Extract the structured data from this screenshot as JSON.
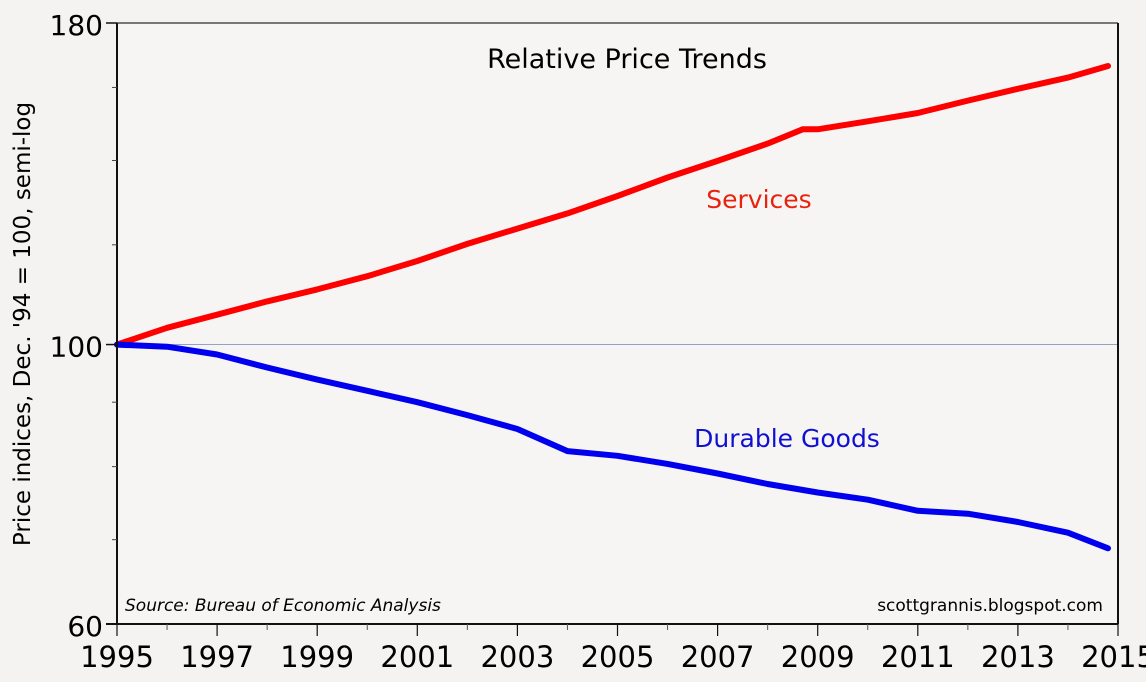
{
  "chart_data": {
    "type": "line",
    "title": "Relative Price Trends",
    "ylabel": "Price indices, Dec. '94 = 100, semi-log",
    "xlabel": "",
    "yscale": "log",
    "ylim": [
      60,
      180
    ],
    "xlim": [
      1995,
      2015
    ],
    "yticks_major": [
      60,
      100,
      180
    ],
    "yticks_minor": [
      70,
      80,
      90,
      120,
      140,
      160
    ],
    "xticks": [
      "1995",
      "1997",
      "1999",
      "2001",
      "2003",
      "2005",
      "2007",
      "2009",
      "2011",
      "2013",
      "2015"
    ],
    "xticks_minor": [
      1996,
      1998,
      2000,
      2002,
      2004,
      2006,
      2008,
      2010,
      2012,
      2014
    ],
    "reference_line": 100,
    "grid": false,
    "series": [
      {
        "name": "Services",
        "color": "#ff0000",
        "label_color": "#e8230d",
        "x": [
          1995,
          1996,
          1997,
          1998,
          1999,
          2000,
          2001,
          2002,
          2003,
          2004,
          2005,
          2006,
          2007,
          2008,
          2008.7,
          2009,
          2010,
          2011,
          2012,
          2013,
          2014,
          2014.8
        ],
        "values": [
          100,
          103.1,
          105.6,
          108.2,
          110.6,
          113.3,
          116.5,
          120.2,
          123.6,
          127.1,
          131.2,
          135.7,
          139.9,
          144.4,
          148.2,
          148.2,
          150.4,
          152.7,
          156.2,
          159.6,
          162.9,
          166.4
        ]
      },
      {
        "name": "Durable Goods",
        "color": "#0000ee",
        "label_color": "#1010d0",
        "x": [
          1995,
          1996,
          1997,
          1998,
          1999,
          2000,
          2001,
          2002,
          2003,
          2004,
          2005,
          2006,
          2007,
          2008,
          2009,
          2010,
          2011,
          2012,
          2013,
          2014,
          2014.8
        ],
        "values": [
          100,
          99.6,
          98.2,
          95.9,
          93.8,
          91.9,
          90.0,
          87.9,
          85.7,
          82.3,
          81.6,
          80.4,
          79.0,
          77.5,
          76.3,
          75.3,
          73.8,
          73.4,
          72.3,
          70.9,
          68.9
        ]
      }
    ],
    "annotations": {
      "source": "Source:  Bureau of Economic Analysis",
      "credit": "scottgrannis.blogspot.com"
    }
  }
}
